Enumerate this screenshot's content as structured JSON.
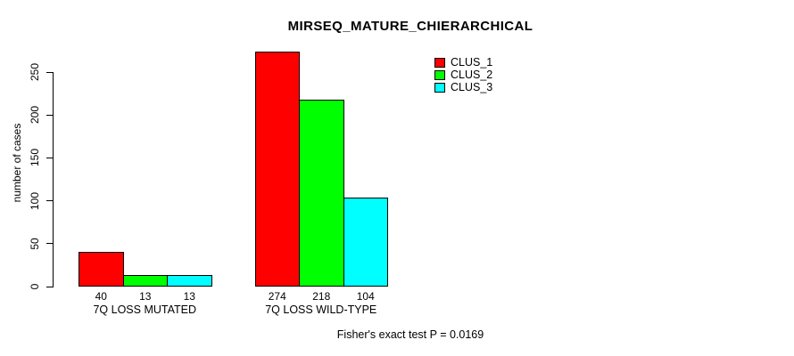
{
  "figure": {
    "background": "#ffffff",
    "text_color": "#000000"
  },
  "chart_data": {
    "type": "bar",
    "title": "MIRSEQ_MATURE_CHIERARCHICAL",
    "xlabel": "",
    "ylabel": "number of cases",
    "categories": [
      "7Q LOSS MUTATED",
      "7Q LOSS WILD-TYPE"
    ],
    "series": [
      {
        "name": "CLUS_1",
        "color": "#ff0000",
        "values": [
          40,
          274
        ]
      },
      {
        "name": "CLUS_2",
        "color": "#00ff00",
        "values": [
          13,
          218
        ]
      },
      {
        "name": "CLUS_3",
        "color": "#00ffff",
        "values": [
          13,
          104
        ]
      }
    ],
    "bar_value_labels": [
      [
        "40",
        "13",
        "13"
      ],
      [
        "274",
        "218",
        "104"
      ]
    ],
    "yticks": [
      0,
      50,
      100,
      150,
      200,
      250
    ],
    "ylim": [
      0,
      250
    ],
    "grid": false,
    "legend_position": "top-right",
    "legend_entries": [
      "CLUS_1",
      "CLUS_2",
      "CLUS_3"
    ],
    "annotation": "Fisher's exact test P = 0.0169"
  }
}
